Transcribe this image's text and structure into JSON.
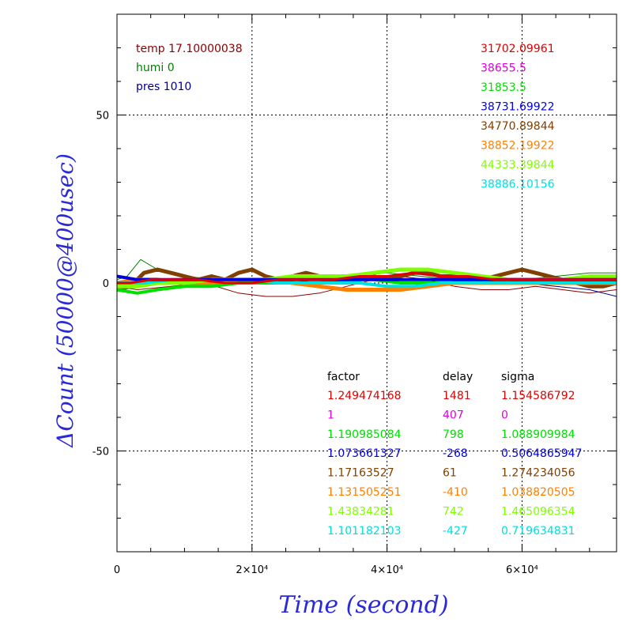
{
  "chart_data": {
    "type": "line",
    "xlabel": "Time (second)",
    "ylabel": "ΔCount (50000@400usec)",
    "xlim": [
      0,
      74000
    ],
    "ylim": [
      -80,
      80
    ],
    "x_ticks": [
      {
        "value": 0,
        "label": "0"
      },
      {
        "value": 20000,
        "label": "2×10⁴"
      },
      {
        "value": 40000,
        "label": "4×10⁴"
      },
      {
        "value": 60000,
        "label": "6×10⁴"
      }
    ],
    "y_ticks": [
      {
        "value": 50,
        "label": "50"
      },
      {
        "value": 0,
        "label": "0"
      },
      {
        "value": -50,
        "label": "-50"
      }
    ],
    "grid": true,
    "env_labels": [
      {
        "text": "temp 17.10000038",
        "color": "#8b0000"
      },
      {
        "text": "humi 0",
        "color": "#008000"
      },
      {
        "text": "pres 1010",
        "color": "#00008b"
      }
    ],
    "count_labels": [
      {
        "text": "31702.09961",
        "color": "#e00000"
      },
      {
        "text": "38655.5",
        "color": "#e000e0"
      },
      {
        "text": "31853.5",
        "color": "#00e000"
      },
      {
        "text": "38731.69922",
        "color": "#0000e0"
      },
      {
        "text": "34770.89844",
        "color": "#804000"
      },
      {
        "text": "38852.19922",
        "color": "#ff8000"
      },
      {
        "text": "44333.39844",
        "color": "#80ff00"
      },
      {
        "text": "38886.10156",
        "color": "#00e0e0"
      }
    ],
    "table_headers": {
      "factor": "factor",
      "delay": "delay",
      "sigma": "sigma"
    },
    "table_rows": [
      {
        "factor": "1.249474168",
        "delay": "1481",
        "sigma": "1.154586792",
        "color": "#e00000"
      },
      {
        "factor": "1",
        "delay": "407",
        "sigma": "0",
        "color": "#e000e0"
      },
      {
        "factor": "1.190985084",
        "delay": "798",
        "sigma": "1.088909984",
        "color": "#00e000"
      },
      {
        "factor": "1.073661327",
        "delay": "-268",
        "sigma": "0.5064865947",
        "color": "#0000e0"
      },
      {
        "factor": "1.17163527",
        "delay": "61",
        "sigma": "1.274234056",
        "color": "#804000"
      },
      {
        "factor": "1.131505251",
        "delay": "-410",
        "sigma": "1.038820505",
        "color": "#ff8000"
      },
      {
        "factor": "1.43834281",
        "delay": "742",
        "sigma": "1.465096354",
        "color": "#80ff00"
      },
      {
        "factor": "1.101182103",
        "delay": "-427",
        "sigma": "0.719634831",
        "color": "#00e0e0"
      }
    ],
    "series": [
      {
        "color": "#8b0000",
        "width": 1,
        "x": [
          0,
          3000,
          8000,
          13000,
          18000,
          22000,
          26000,
          30000,
          34000,
          38000,
          42000,
          46000,
          50000,
          54000,
          58000,
          62000,
          66000,
          70000,
          74000
        ],
        "y": [
          -1,
          -2,
          -1,
          0,
          -3,
          -4,
          -4,
          -3,
          -1,
          1,
          2,
          1,
          -1,
          -2,
          -2,
          -1,
          -2,
          -3,
          -2
        ]
      },
      {
        "color": "#008000",
        "width": 1,
        "x": [
          0,
          1500,
          3500,
          6000,
          10000,
          15000,
          20000,
          25000,
          30000,
          35000,
          40000,
          45000,
          50000,
          55000,
          60000,
          65000,
          70000,
          74000
        ],
        "y": [
          1,
          2,
          7,
          4,
          2,
          1,
          0,
          0,
          1,
          2,
          3,
          2,
          1,
          0,
          1,
          2,
          3,
          3
        ]
      },
      {
        "color": "#00008b",
        "width": 1,
        "x": [
          0,
          5000,
          10000,
          15000,
          20000,
          25000,
          30000,
          35000,
          40000,
          45000,
          50000,
          55000,
          60000,
          65000,
          70000,
          74000
        ],
        "y": [
          0,
          1,
          1,
          1,
          1,
          0,
          0,
          0,
          -1,
          -1,
          0,
          0,
          0,
          -1,
          -2,
          -4
        ]
      },
      {
        "color": "#804000",
        "width": 5,
        "x": [
          0,
          2000,
          4000,
          6000,
          8000,
          10000,
          12000,
          14000,
          16000,
          18000,
          20000,
          22000,
          24000,
          26000,
          28000,
          30000,
          32000,
          34000,
          36000,
          38000,
          40000,
          42000,
          44000,
          46000,
          48000,
          50000,
          52000,
          54000,
          56000,
          58000,
          60000,
          62000,
          64000,
          66000,
          68000,
          70000,
          72000,
          74000
        ],
        "y": [
          -2,
          -1,
          3,
          4,
          3,
          2,
          1,
          2,
          1,
          3,
          4,
          2,
          1,
          2,
          3,
          2,
          1,
          1,
          2,
          2,
          1,
          2,
          3,
          3,
          2,
          2,
          2,
          1,
          2,
          3,
          4,
          3,
          2,
          1,
          0,
          -1,
          -1,
          0
        ]
      },
      {
        "color": "#ff8000",
        "width": 5,
        "x": [
          0,
          3000,
          6000,
          10000,
          14000,
          18000,
          22000,
          26000,
          30000,
          34000,
          38000,
          42000,
          46000,
          50000,
          54000,
          58000,
          62000,
          66000,
          70000,
          74000
        ],
        "y": [
          0,
          1,
          1,
          0,
          0,
          1,
          1,
          0,
          -1,
          -2,
          -2,
          -2,
          -1,
          0,
          0,
          0,
          0,
          0,
          0,
          0
        ]
      },
      {
        "color": "#80ff00",
        "width": 5,
        "x": [
          0,
          3000,
          6000,
          10000,
          14000,
          18000,
          22000,
          26000,
          30000,
          34000,
          38000,
          42000,
          46000,
          50000,
          54000,
          58000,
          62000,
          66000,
          70000,
          74000
        ],
        "y": [
          -1,
          -1,
          0,
          0,
          1,
          1,
          1,
          2,
          2,
          2,
          3,
          4,
          4,
          3,
          2,
          1,
          1,
          1,
          2,
          2
        ]
      },
      {
        "color": "#00e000",
        "width": 4,
        "x": [
          0,
          3000,
          6000,
          10000,
          14000,
          18000,
          22000,
          26000,
          30000,
          34000,
          38000,
          42000,
          46000,
          50000,
          54000,
          58000,
          62000,
          66000,
          70000,
          74000
        ],
        "y": [
          -2,
          -3,
          -2,
          -1,
          -1,
          0,
          0,
          0,
          0,
          1,
          1,
          0,
          0,
          0,
          0,
          0,
          1,
          1,
          1,
          1
        ]
      },
      {
        "color": "#00e0e0",
        "width": 4,
        "x": [
          0,
          4000,
          8000,
          12000,
          16000,
          20000,
          24000,
          28000,
          32000,
          36000,
          40000,
          44000,
          48000,
          52000,
          56000,
          60000,
          64000,
          68000,
          72000,
          74000
        ],
        "y": [
          0,
          0,
          1,
          1,
          1,
          1,
          0,
          0,
          0,
          0,
          -1,
          -1,
          0,
          0,
          0,
          0,
          0,
          0,
          0,
          0
        ]
      },
      {
        "color": "#0000e0",
        "width": 4,
        "x": [
          0,
          3000,
          6000,
          10000,
          14000,
          18000,
          22000,
          26000,
          30000,
          34000,
          38000,
          42000,
          46000,
          50000,
          54000,
          58000,
          62000,
          66000,
          70000,
          74000
        ],
        "y": [
          2,
          1,
          1,
          1,
          1,
          1,
          1,
          1,
          1,
          1,
          1,
          1,
          1,
          1,
          1,
          1,
          1,
          1,
          1,
          1
        ]
      },
      {
        "color": "#e00000",
        "width": 3,
        "x": [
          0,
          2000,
          5000,
          8000,
          12000,
          16000,
          20000,
          24000,
          28000,
          32000,
          36000,
          40000,
          44000,
          48000,
          52000,
          56000,
          60000,
          64000,
          68000,
          72000,
          74000
        ],
        "y": [
          0,
          0,
          1,
          1,
          1,
          0,
          0,
          1,
          1,
          1,
          2,
          2,
          3,
          2,
          2,
          1,
          1,
          1,
          1,
          1,
          1
        ]
      }
    ]
  }
}
